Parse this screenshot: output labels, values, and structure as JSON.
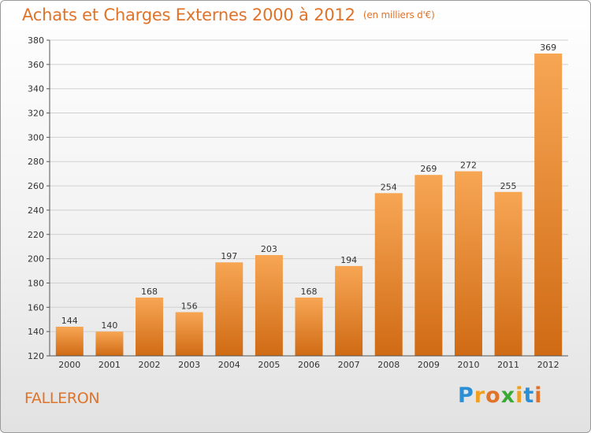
{
  "header": {
    "title": "Achats et Charges Externes 2000 à 2012",
    "unit": "(en milliers d'€)"
  },
  "footer": {
    "location": "FALLERON",
    "brand_letters": [
      {
        "ch": "P",
        "color": "#2b8fd6"
      },
      {
        "ch": "r",
        "color": "#f0a020"
      },
      {
        "ch": "o",
        "color": "#e0732a"
      },
      {
        "ch": "x",
        "color": "#3aaa35"
      },
      {
        "ch": "i",
        "color": "#f0a020"
      },
      {
        "ch": "t",
        "color": "#2b8fd6"
      },
      {
        "ch": "i",
        "color": "#e0732a"
      }
    ]
  },
  "colors": {
    "bar_top": "#f7a654",
    "bar_bottom": "#d06a14",
    "title": "#e0732a"
  },
  "chart_data": {
    "type": "bar",
    "title": "Achats et Charges Externes 2000 à 2012",
    "subtitle": "(en milliers d'€)",
    "categories": [
      "2000",
      "2001",
      "2002",
      "2003",
      "2004",
      "2005",
      "2006",
      "2007",
      "2008",
      "2009",
      "2010",
      "2011",
      "2012"
    ],
    "values": [
      144,
      140,
      168,
      156,
      197,
      203,
      168,
      194,
      254,
      269,
      272,
      255,
      369
    ],
    "ylim": [
      120,
      380
    ],
    "yticks": [
      120,
      140,
      160,
      180,
      200,
      220,
      240,
      260,
      280,
      300,
      320,
      340,
      360,
      380
    ],
    "grid": true,
    "legend": "none"
  }
}
